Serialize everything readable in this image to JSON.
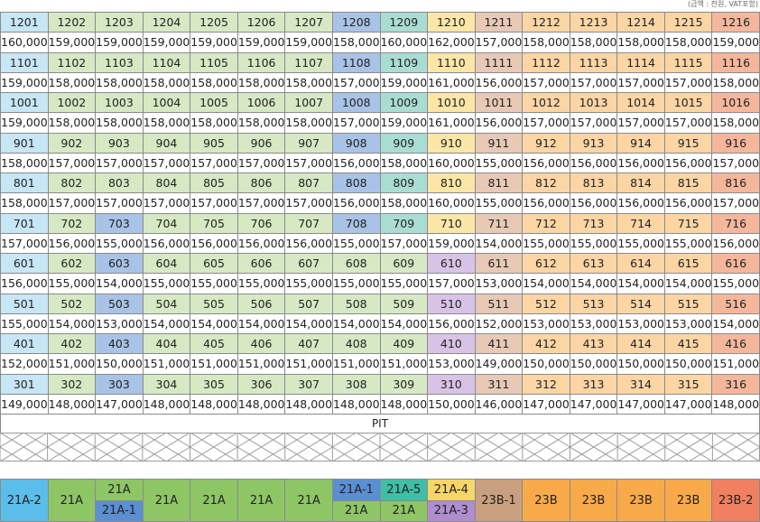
{
  "note": "(금액 : 천원, VAT포함)",
  "floors": [
    {
      "units": [
        "1201",
        "1202",
        "1203",
        "1204",
        "1205",
        "1206",
        "1207",
        "1208",
        "1209",
        "1210",
        "1211",
        "1212",
        "1213",
        "1214",
        "1215",
        "1216"
      ],
      "prices": [
        "160,000",
        "159,000",
        "159,000",
        "159,000",
        "159,000",
        "159,000",
        "159,000",
        "158,000",
        "160,000",
        "162,000",
        "157,000",
        "158,000",
        "158,000",
        "158,000",
        "158,000",
        "159,000"
      ]
    },
    {
      "units": [
        "1101",
        "1102",
        "1103",
        "1104",
        "1105",
        "1106",
        "1107",
        "1108",
        "1109",
        "1110",
        "1111",
        "1112",
        "1113",
        "1114",
        "1115",
        "1116"
      ],
      "prices": [
        "159,000",
        "158,000",
        "158,000",
        "158,000",
        "158,000",
        "158,000",
        "158,000",
        "157,000",
        "159,000",
        "161,000",
        "156,000",
        "157,000",
        "157,000",
        "157,000",
        "157,000",
        "158,000"
      ]
    },
    {
      "units": [
        "1001",
        "1002",
        "1003",
        "1004",
        "1005",
        "1006",
        "1007",
        "1008",
        "1009",
        "1010",
        "1011",
        "1012",
        "1013",
        "1014",
        "1015",
        "1016"
      ],
      "prices": [
        "159,000",
        "158,000",
        "158,000",
        "158,000",
        "158,000",
        "158,000",
        "158,000",
        "157,000",
        "159,000",
        "161,000",
        "156,000",
        "157,000",
        "157,000",
        "157,000",
        "157,000",
        "158,000"
      ]
    },
    {
      "units": [
        "901",
        "902",
        "903",
        "904",
        "905",
        "906",
        "907",
        "908",
        "909",
        "910",
        "911",
        "912",
        "913",
        "914",
        "915",
        "916"
      ],
      "prices": [
        "158,000",
        "157,000",
        "157,000",
        "157,000",
        "157,000",
        "157,000",
        "157,000",
        "156,000",
        "158,000",
        "160,000",
        "155,000",
        "156,000",
        "156,000",
        "156,000",
        "156,000",
        "157,000"
      ]
    },
    {
      "units": [
        "801",
        "802",
        "803",
        "804",
        "805",
        "806",
        "807",
        "808",
        "809",
        "810",
        "811",
        "812",
        "813",
        "814",
        "815",
        "816"
      ],
      "prices": [
        "158,000",
        "157,000",
        "157,000",
        "157,000",
        "157,000",
        "157,000",
        "157,000",
        "156,000",
        "158,000",
        "160,000",
        "155,000",
        "156,000",
        "156,000",
        "156,000",
        "156,000",
        "157,000"
      ]
    },
    {
      "units": [
        "701",
        "702",
        "703",
        "704",
        "705",
        "706",
        "707",
        "708",
        "709",
        "710",
        "711",
        "712",
        "713",
        "714",
        "715",
        "716"
      ],
      "prices": [
        "157,000",
        "156,000",
        "155,000",
        "156,000",
        "156,000",
        "156,000",
        "156,000",
        "155,000",
        "157,000",
        "159,000",
        "154,000",
        "155,000",
        "155,000",
        "155,000",
        "155,000",
        "156,000"
      ]
    },
    {
      "units": [
        "601",
        "602",
        "603",
        "604",
        "605",
        "606",
        "607",
        "608",
        "609",
        "610",
        "611",
        "612",
        "613",
        "614",
        "615",
        "616"
      ],
      "prices": [
        "156,000",
        "155,000",
        "154,000",
        "155,000",
        "155,000",
        "155,000",
        "155,000",
        "155,000",
        "155,000",
        "157,000",
        "153,000",
        "154,000",
        "154,000",
        "154,000",
        "154,000",
        "155,000"
      ]
    },
    {
      "units": [
        "501",
        "502",
        "503",
        "504",
        "505",
        "506",
        "507",
        "508",
        "509",
        "510",
        "511",
        "512",
        "513",
        "514",
        "515",
        "516"
      ],
      "prices": [
        "155,000",
        "154,000",
        "153,000",
        "154,000",
        "154,000",
        "154,000",
        "154,000",
        "154,000",
        "154,000",
        "156,000",
        "152,000",
        "153,000",
        "153,000",
        "153,000",
        "153,000",
        "154,000"
      ]
    },
    {
      "units": [
        "401",
        "402",
        "403",
        "404",
        "405",
        "406",
        "407",
        "408",
        "409",
        "410",
        "411",
        "412",
        "413",
        "414",
        "415",
        "416"
      ],
      "prices": [
        "152,000",
        "151,000",
        "150,000",
        "151,000",
        "151,000",
        "151,000",
        "151,000",
        "151,000",
        "151,000",
        "153,000",
        "149,000",
        "150,000",
        "150,000",
        "150,000",
        "150,000",
        "151,000"
      ]
    },
    {
      "units": [
        "301",
        "302",
        "303",
        "304",
        "305",
        "306",
        "307",
        "308",
        "309",
        "310",
        "311",
        "312",
        "313",
        "314",
        "315",
        "316"
      ],
      "prices": [
        "149,000",
        "148,000",
        "147,000",
        "148,000",
        "148,000",
        "148,000",
        "148,000",
        "148,000",
        "148,000",
        "150,000",
        "146,000",
        "147,000",
        "147,000",
        "147,000",
        "147,000",
        "148,000"
      ]
    }
  ],
  "pit": "PIT",
  "types": [
    {
      "label": "21A-2"
    },
    {
      "label": "21A"
    },
    {
      "top": "21A",
      "bottom": "21A-1"
    },
    {
      "label": "21A"
    },
    {
      "label": "21A"
    },
    {
      "label": "21A"
    },
    {
      "label": "21A"
    },
    {
      "top": "21A-1",
      "bottom": "21A"
    },
    {
      "top": "21A-5",
      "bottom": "21A"
    },
    {
      "top": "21A-4",
      "bottom": "21A-3"
    },
    {
      "label": "23B-1"
    },
    {
      "label": "23B"
    },
    {
      "label": "23B"
    },
    {
      "label": "23B"
    },
    {
      "label": "23B"
    },
    {
      "label": "23B-2"
    }
  ]
}
